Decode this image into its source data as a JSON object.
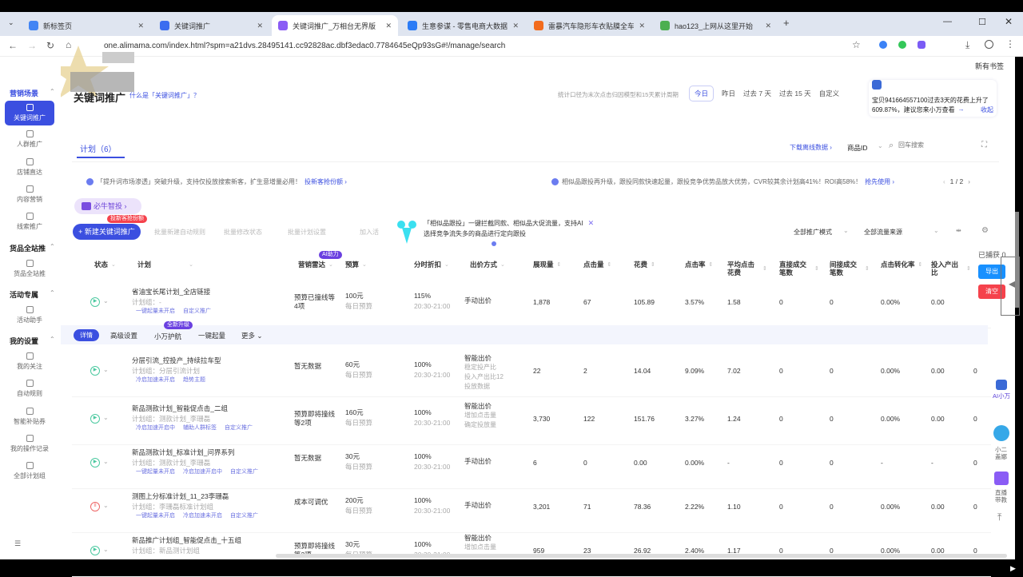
{
  "browser": {
    "tabs": [
      {
        "title": "新标签页",
        "color": "#4285f4"
      },
      {
        "title": "关键词推广",
        "color": "#3b6df0"
      },
      {
        "title": "关键词推广_万相台无界版",
        "color": "#8a5cf5"
      },
      {
        "title": "生意参谋 - 零售电商大数据产品",
        "color": "#2b7cf6"
      },
      {
        "title": "雷暴汽车隐形车衣贴膜全车漆面",
        "color": "#f26b1d"
      },
      {
        "title": "hao123_上网从这里开始",
        "color": "#4caf50"
      }
    ],
    "url": "one.alimama.com/index.html?spm=a21dvs.28495141.cc92828ac.dbf3edac0.7784645eQp93sG#!/manage/search",
    "bookmarks": "新有书签"
  },
  "sidebar": {
    "sections": [
      {
        "title": "营销场景",
        "items": [
          "关键词推广",
          "人群推广",
          "店铺直达",
          "内容营销",
          "线索推广"
        ]
      },
      {
        "title": "货品全站推",
        "items": [
          "货品全站推"
        ]
      },
      {
        "title": "活动专属",
        "items": [
          "活动助手"
        ]
      },
      {
        "title": "我的设置",
        "items": [
          "我的关注",
          "自动规则",
          "智能补贴券",
          "我的操作记录",
          "全部计划组"
        ]
      }
    ]
  },
  "header": {
    "title": "关键词推广",
    "subtitle": "什么是「关键词推广」？",
    "stat_note": "统计口径为末次点击归因模型和15天累计周期",
    "date_ranges": [
      "今日",
      "昨日",
      "过去 7 天",
      "过去 15 天",
      "自定义"
    ],
    "active_range": "今日",
    "tip": {
      "line1": "宝贝941664557100过去3天的花费上升了",
      "line2": "609.87%，建议您来小万查看",
      "arrow": "→",
      "collapse": "收起"
    }
  },
  "toolbar": {
    "plan_tab": "计划（6）",
    "download": "下载离线数据 ›",
    "filter_field": "商品ID",
    "search_placeholder": "回车搜索"
  },
  "notices": {
    "left": "「提升词市场渗透」突破升级，支持仅投放搜索新客，扩生意增量必用！",
    "left_link": "投新客抢份额 ›",
    "right": "相似品跟投再升级，跟投同款快速起量，跟投竞争优势品放大优势，CVR较其余计划高41%！ROI高58%！",
    "right_link": "抢先使用 ›",
    "pager": "1 / 2"
  },
  "bull": "必牛智投 ›",
  "actions": {
    "new_badge": "投新客抢份额",
    "new": "+ 新建关键词推广",
    "batch_rule": "批量新建自动规则",
    "batch_status": "批量修改状态",
    "batch_settings": "批量计划设置",
    "add_to": "加入活",
    "promo_line1": "「相似品跟投」一键拦截同款、相似品大促流量，支持AI",
    "promo_line2": "选择竞争流失多的商品进行定向跟投",
    "mode": "全部推广模式",
    "source": "全部流量来源"
  },
  "capture": {
    "label": "已捕获 0",
    "export": "导出",
    "clear": "清空"
  },
  "columns": [
    "状态",
    "计划",
    "营销雷达",
    "预算",
    "分时折扣",
    "出价方式",
    "展现量",
    "点击量",
    "花费",
    "点击率",
    "平均点击花费",
    "直接成交笔数",
    "间接成交笔数",
    "点击转化率",
    "投入产出比"
  ],
  "ai_badge": "AI助力",
  "row_actions": {
    "detail": "详情",
    "advanced": "高级设置",
    "guard": "小万护航",
    "guard_badge": "全新升级",
    "boost": "一键起量",
    "more": "更多 ⌄"
  },
  "rows": [
    {
      "status": "running",
      "name": "省油宝长尾计划_全店链接",
      "group": "计划组：-",
      "links": [
        "一键起量未开启",
        "自定义推广"
      ],
      "radar": "预算已撞线等4项",
      "budget": "100元",
      "budget_sub": "每日预算",
      "disc": "115%",
      "disc_sub": "20:30-21:00",
      "bid": [
        "手动出价"
      ],
      "v": [
        "1,878",
        "67",
        "105.89",
        "3.57%",
        "1.58",
        "0",
        "0",
        "0.00%",
        "0.00",
        ""
      ]
    },
    {
      "status": "running",
      "name": "分层引流_控投产_持续拉车型",
      "group": "计划组：分层引流计划",
      "links": [
        "冷启加速未开启",
        "趋势主题"
      ],
      "radar": "暂无数据",
      "budget": "60元",
      "budget_sub": "每日预算",
      "disc": "100%",
      "disc_sub": "20:30-21:00",
      "bid": [
        "智能出价",
        "稳定投产比",
        "投入产出比12",
        "投放数据"
      ],
      "v": [
        "22",
        "2",
        "14.04",
        "9.09%",
        "7.02",
        "0",
        "0",
        "0.00%",
        "0.00",
        "0"
      ]
    },
    {
      "status": "running",
      "name": "新品测款计划_智能促点击_二组",
      "group": "计划组：测款计划_李珊磊",
      "links": [
        "冷启加速开启中",
        "辅助人群标签",
        "自定义推广"
      ],
      "radar": "预算即将撞线等2项",
      "budget": "160元",
      "budget_sub": "每日预算",
      "disc": "100%",
      "disc_sub": "20:30-21:00",
      "bid": [
        "智能出价",
        "增加点击量",
        "确定投放量"
      ],
      "v": [
        "3,730",
        "122",
        "151.76",
        "3.27%",
        "1.24",
        "0",
        "0",
        "0.00%",
        "0.00",
        "0"
      ]
    },
    {
      "status": "running",
      "name": "新品测款计划_标准计划_问界系列",
      "group": "计划组：测款计划_李珊磊",
      "links": [
        "一键起量未开启",
        "冷启加速开启中",
        "自定义推广"
      ],
      "radar": "暂无数据",
      "budget": "30元",
      "budget_sub": "每日预算",
      "disc": "100%",
      "disc_sub": "20:30-21:00",
      "bid": [
        "手动出价"
      ],
      "v": [
        "6",
        "0",
        "0.00",
        "0.00%",
        "-",
        "0",
        "0",
        "-",
        "-",
        "0"
      ]
    },
    {
      "status": "paused",
      "name": "测图上分标准计划_11_23李珊磊",
      "group": "计划组：李珊磊标准计划组",
      "links": [
        "一键起量未开启",
        "冷启加速未开启",
        "自定义推广"
      ],
      "radar": "成本可调优",
      "budget": "200元",
      "budget_sub": "每日预算",
      "disc": "100%",
      "disc_sub": "20:30-21:00",
      "bid": [
        "手动出价"
      ],
      "v": [
        "3,201",
        "71",
        "78.36",
        "2.22%",
        "1.10",
        "0",
        "0",
        "0.00%",
        "0.00",
        "0"
      ]
    },
    {
      "status": "running",
      "name": "新品推广计划组_智能促点击_十五组",
      "group": "计划组：新品测计划组",
      "links": [],
      "radar": "预算即将撞线等2项",
      "budget": "30元",
      "budget_sub": "每日预算",
      "disc": "100%",
      "disc_sub": "20:30-21:00",
      "bid": [
        "智能出价",
        "增加点击量"
      ],
      "v": [
        "959",
        "23",
        "26.92",
        "2.40%",
        "1.17",
        "0",
        "0",
        "0.00%",
        "0.00",
        "0"
      ]
    }
  ],
  "floating": {
    "ai": "AI小万",
    "service": "小二盖娜",
    "live": "直播带教"
  },
  "colors": {
    "primary": "#3b4fe0",
    "export": "#1890ff",
    "clear": "#f5424c",
    "running": "#4cc9a0",
    "paused": "#ee6666"
  }
}
